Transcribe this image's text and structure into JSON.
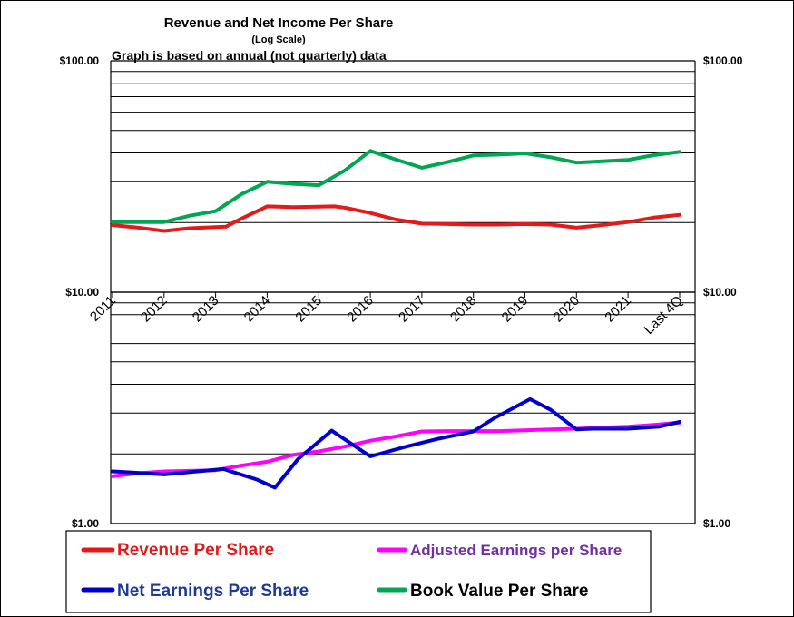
{
  "chart_data": {
    "type": "line",
    "title": "Revenue  and Net Income  Per Share",
    "subtitle": "(Log  Scale)",
    "note": "Graph is based on annual  (not quarterly)  data",
    "y_scale": "log",
    "ylim": [
      1,
      100
    ],
    "y_tick_labels": {
      "left": [
        "$100.00",
        "$10.00",
        "$1.00"
      ],
      "right": [
        "$100.00",
        "$10.00",
        "$1.00"
      ]
    },
    "y_tick_values": [
      100,
      10,
      1
    ],
    "x_range": [
      0,
      11.3
    ],
    "categories": [
      "2011",
      "2012",
      "2013",
      "2014",
      "2015",
      "2016",
      "2017",
      "2018",
      "2019",
      "2020",
      "2021",
      "Last 4Q"
    ],
    "category_positions": [
      0,
      1,
      2,
      3,
      4,
      5,
      6,
      7,
      8,
      9,
      10,
      11
    ],
    "series": [
      {
        "name": "Revenue Per Share",
        "color": "#e31a1c",
        "x": [
          0,
          0.3,
          0.5,
          1,
          1.5,
          2.2,
          2.5,
          3,
          3.5,
          4,
          4.3,
          4.5,
          5,
          5.5,
          6,
          6.5,
          7,
          7.5,
          8,
          8.5,
          9,
          9.5,
          10,
          10.5,
          11
        ],
        "values": [
          19.5,
          19.2,
          19.0,
          18.4,
          18.9,
          19.2,
          20.8,
          23.5,
          23.3,
          23.4,
          23.5,
          23.2,
          22.0,
          20.6,
          19.8,
          19.7,
          19.6,
          19.6,
          19.7,
          19.6,
          19.0,
          19.5,
          20.1,
          21.0,
          21.6
        ]
      },
      {
        "name": "Adjusted Earnings per Share",
        "color": "#ff00ff",
        "x": [
          0,
          0.5,
          1,
          1.5,
          2,
          2.5,
          3,
          3.5,
          4,
          4.5,
          5,
          5.5,
          6,
          6.5,
          7,
          7.5,
          8,
          8.5,
          9,
          9.5,
          10,
          10.5,
          11
        ],
        "values": [
          1.6,
          1.65,
          1.68,
          1.69,
          1.7,
          1.78,
          1.85,
          1.98,
          2.05,
          2.15,
          2.28,
          2.38,
          2.5,
          2.51,
          2.51,
          2.51,
          2.53,
          2.55,
          2.57,
          2.6,
          2.62,
          2.67,
          2.73
        ]
      },
      {
        "name": "Net Earnings Per Share",
        "color": "#0000cc",
        "x": [
          0,
          1,
          1.65,
          2.15,
          2.8,
          3.15,
          3.6,
          4.25,
          5,
          5.7,
          6.3,
          7,
          7.4,
          8.1,
          8.5,
          9,
          9.3,
          10,
          10.6,
          11
        ],
        "values": [
          1.68,
          1.63,
          1.68,
          1.72,
          1.55,
          1.43,
          1.9,
          2.52,
          1.95,
          2.15,
          2.32,
          2.5,
          2.85,
          3.45,
          3.1,
          2.55,
          2.57,
          2.57,
          2.62,
          2.75
        ]
      },
      {
        "name": "Book Value Per Share",
        "color": "#00a651",
        "x": [
          0,
          0.5,
          1,
          1.5,
          2,
          2.5,
          3,
          3.5,
          4,
          4.5,
          5,
          5.5,
          6,
          6.5,
          7,
          7.5,
          8,
          8.5,
          9,
          9.5,
          10,
          10.5,
          11
        ],
        "values": [
          20.1,
          20.1,
          20.1,
          21.4,
          22.4,
          26.5,
          30.0,
          29.4,
          29.0,
          33.5,
          40.8,
          37.4,
          34.5,
          36.5,
          39.0,
          39.3,
          39.8,
          38.3,
          36.3,
          36.8,
          37.3,
          39.1,
          40.4
        ]
      }
    ],
    "legend": {
      "placement": "bottom",
      "entries": [
        {
          "label": "Revenue Per Share",
          "color": "#e31a1c",
          "text_color": "#e31a1c"
        },
        {
          "label": "Adjusted Earnings per Share",
          "color": "#ff00ff",
          "text_color": "#7030a0"
        },
        {
          "label": "Net Earnings Per Share",
          "color": "#0000cc",
          "text_color": "#1f3a93"
        },
        {
          "label": "Book Value Per Share",
          "color": "#00a651",
          "text_color": "#000000"
        }
      ]
    }
  }
}
